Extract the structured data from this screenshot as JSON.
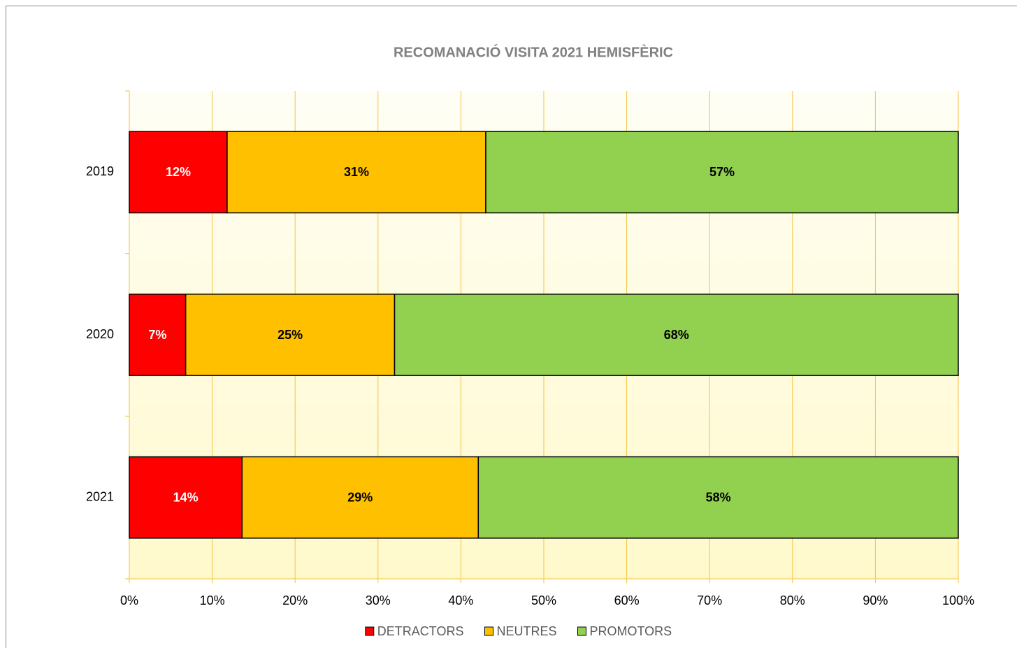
{
  "chart_data": {
    "type": "stacked-bar-horizontal",
    "title": "RECOMANACIÓ VISITA 2021 HEMISFÈRIC",
    "categories": [
      "2019",
      "2020",
      "2021"
    ],
    "series": [
      {
        "name": "DETRACTORS",
        "color": "#ff0000",
        "values": [
          11.8,
          6.8,
          13.6
        ],
        "value_labels": [
          "12%",
          "7%",
          "14%"
        ]
      },
      {
        "name": "NEUTRES",
        "color": "#ffc000",
        "values": [
          31.2,
          25.2,
          28.5
        ],
        "value_labels": [
          "31%",
          "25%",
          "29%"
        ]
      },
      {
        "name": "PROMOTORS",
        "color": "#92d050",
        "values": [
          57.0,
          68.0,
          57.9
        ],
        "value_labels": [
          "57%",
          "68%",
          "58%"
        ]
      }
    ],
    "xlim": [
      0,
      100
    ],
    "xticks": [
      {
        "value": 0,
        "label": "0%"
      },
      {
        "value": 10,
        "label": "10%"
      },
      {
        "value": 20,
        "label": "20%"
      },
      {
        "value": 30,
        "label": "30%"
      },
      {
        "value": 40,
        "label": "40%"
      },
      {
        "value": 50,
        "label": "50%"
      },
      {
        "value": 60,
        "label": "60%"
      },
      {
        "value": 70,
        "label": "70%"
      },
      {
        "value": 80,
        "label": "80%"
      },
      {
        "value": 90,
        "label": "90%"
      },
      {
        "value": 100,
        "label": "100%"
      }
    ],
    "grid": true,
    "legend": "bottom"
  }
}
